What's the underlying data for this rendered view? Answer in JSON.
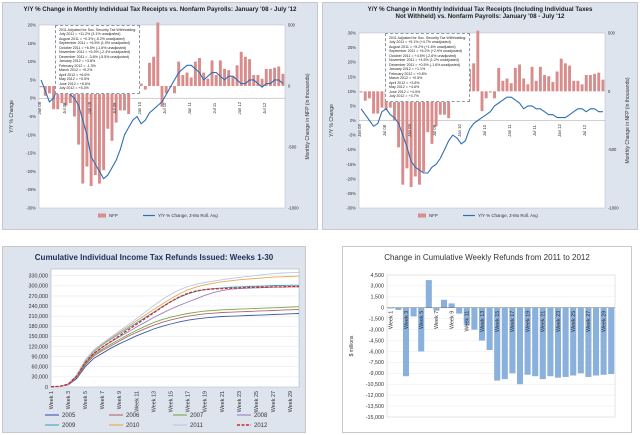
{
  "colors": {
    "bar_red": "#d98c8c",
    "line_blue": "#2f6fb3",
    "bar_blue": "#8ab0dc",
    "panel_bg": "#dde4ee"
  },
  "chart_data": [
    {
      "type": "bar",
      "title": "Y/Y % Change in Monthly Individual Tax Receipts  vs. Nonfarm Payrolls: January '08 - July '12",
      "ylabel_left": "Y/Y % Change",
      "ylabel_right": "Monthly Change in NFP (in thousands)",
      "ylim_left": [
        -30,
        20
      ],
      "yticks_left": [
        "20%",
        "15%",
        "10%",
        "5%",
        "0%",
        "-5%",
        "-10%",
        "-15%",
        "-20%",
        "-25%",
        "-30%"
      ],
      "ylim_right": [
        -1000,
        500
      ],
      "yticks_right": [
        "500",
        "",
        "0",
        "",
        "-500",
        "",
        "-1000"
      ],
      "xticks": [
        "Jan 08",
        "Jul 08",
        "Jan 09",
        "Jul 09",
        "Jan 10",
        "Jul 10",
        "Jan 11",
        "Jul 11",
        "Jan 12",
        "Jul 12"
      ],
      "legend": [
        "NFP",
        "Y/Y % Change, 3-Mo Roll. Avg"
      ],
      "annotation": [
        "2011 Adjusted for Soc. Security Tax Withholding:",
        "July 2011 = +11.2% (3.1% unadjusted)",
        "August 2011 = +0.3% (-5.2% unadjusted)",
        "September 2011 = +6.5% (1.9% unadjusted)",
        "October 2011 = +6.5% (-1.6% unadjusted)",
        "November 2011 = +5.3% (-2.4% unadjusted)",
        "December 2011 = -3.6% (-5.5% unadjusted)",
        "January 2012 = +3.8%",
        "February 2012 = -1.3%",
        "March 2012 = +5.2%",
        "April 2012 = +6.6%",
        "May 2012 = +5.5%",
        "June 2012 = +6.6%",
        "July 2012 = +5.3%"
      ],
      "series": [
        {
          "name": "NFP",
          "values": [
            -10,
            -80,
            -60,
            -190,
            -190,
            -140,
            -160,
            -140,
            -250,
            -480,
            -800,
            -660,
            -820,
            -730,
            -800,
            -690,
            -350,
            -450,
            -300,
            -200,
            -200,
            -230,
            -10,
            -60,
            20,
            -30,
            190,
            240,
            520,
            -170,
            -60,
            -10,
            -60,
            200,
            90,
            110,
            70,
            200,
            230,
            110,
            60,
            210,
            90,
            210,
            140,
            130,
            80,
            170,
            280,
            240,
            220,
            90,
            90,
            60,
            140,
            140,
            150,
            160,
            100
          ]
        },
        {
          "name": "Y/Y % Change, 3-Mo Roll. Avg",
          "values": [
            5,
            2,
            -1,
            0,
            3,
            5,
            4,
            1,
            0,
            -2,
            -6,
            -10,
            -16,
            -18,
            -20,
            -22,
            -21,
            -19,
            -17,
            -14,
            -10,
            -8,
            -6,
            -5,
            -7,
            -6,
            -4,
            -3,
            -2,
            -1,
            1,
            3,
            5,
            7,
            8,
            9,
            9,
            8,
            7,
            5,
            6,
            7,
            7,
            6,
            5,
            6,
            6,
            5,
            4,
            4,
            5,
            5,
            4,
            3,
            4,
            4,
            5,
            5,
            4
          ]
        }
      ]
    },
    {
      "type": "bar",
      "title": "Y/Y % Change in Monthly Individual Tax Receipts (Including Individual Taxes Not Withheld) vs. Nonfarm Payrolls: January '08 - July '12",
      "ylabel_left": "Y/Y % Change",
      "ylabel_right": "Monthly Change in NFP (in thousands)",
      "ylim_left": [
        -30,
        30
      ],
      "yticks_left": [
        "30%",
        "25%",
        "20%",
        "15%",
        "10%",
        "5%",
        "0%",
        "-5%",
        "-10%",
        "-15%",
        "-20%",
        "-25%",
        "-30%"
      ],
      "ylim_right": [
        -1000,
        500
      ],
      "yticks_right": [
        "500",
        "",
        "0",
        "",
        "-500",
        "",
        "-1000"
      ],
      "xticks": [
        "Jan 08",
        "Jul 08",
        "Jan 09",
        "Jul 09",
        "Jan 10",
        "Jul 10",
        "Jan 11",
        "Jul 11",
        "Jan 12",
        "Jul 12"
      ],
      "legend": [
        "NFP",
        "Y/Y % Change, 3-Mo Roll. Avg"
      ],
      "annotation": [
        "2011 Adjusted for Soc. Security Tax Withholding:",
        "July 2011 = +9.1% (+4.7% unadjusted)",
        "August 2011 = +5.2% (+1.6% unadjusted)",
        "September 2011 = +6.2% (+2.9% unadjusted)",
        "October 2011 = +4.5% (-2.6% unadjusted)",
        "November 2011 = +4.5% (1.2% unadjusted)",
        "December 2011 = +0.5% (-1.6% unadjusted)",
        "January 2012 = +1.1%",
        "February 2012 = +0.8%",
        "March 2012 = +0.5%",
        "April 2012 = +3.8%",
        "May 2012 = +4.6%",
        "June 2012 = +4.5%",
        "July 2012 = +3.7%"
      ],
      "series": [
        {
          "name": "NFP",
          "values": [
            -10,
            -80,
            -60,
            -190,
            -190,
            -140,
            -160,
            -140,
            -250,
            -480,
            -800,
            -660,
            -820,
            -730,
            -800,
            -690,
            -350,
            -450,
            -300,
            -200,
            -200,
            -230,
            -10,
            -60,
            20,
            -30,
            190,
            240,
            520,
            -170,
            -60,
            -10,
            -60,
            200,
            90,
            110,
            70,
            200,
            230,
            110,
            60,
            210,
            90,
            210,
            140,
            130,
            80,
            170,
            280,
            240,
            220,
            90,
            90,
            60,
            140,
            140,
            150,
            160,
            100
          ]
        },
        {
          "name": "Y/Y % Change, 3-Mo Roll. Avg",
          "values": [
            4,
            2,
            0,
            -2,
            -1,
            3,
            4,
            2,
            1,
            -1,
            -5,
            -9,
            -14,
            -16,
            -17,
            -18,
            -18,
            -16,
            -15,
            -13,
            -10,
            -7,
            -5,
            -6,
            -8,
            -7,
            -3,
            -1,
            0,
            1,
            2,
            3,
            5,
            6,
            7,
            8,
            8,
            7,
            6,
            4,
            5,
            5,
            4,
            4,
            3,
            2,
            2,
            1,
            1,
            1,
            2,
            3,
            4,
            4,
            3,
            4,
            4,
            3,
            3
          ]
        }
      ]
    },
    {
      "type": "line",
      "title": "Cumulative Individual Income Tax Refunds Issued: Weeks 1-30",
      "ylim": [
        0,
        350000
      ],
      "yticks": [
        "0",
        "30,000",
        "60,000",
        "90,000",
        "120,000",
        "150,000",
        "180,000",
        "210,000",
        "240,000",
        "270,000",
        "300,000",
        "330,000"
      ],
      "xticks": [
        "Week 1",
        "Week 3",
        "Week 5",
        "Week 7",
        "Week 9",
        "Week 11",
        "Week 13",
        "Week 15",
        "Week 17",
        "Week 19",
        "Week 21",
        "Week 23",
        "Week 25",
        "Week 27",
        "Week 29"
      ],
      "series": [
        {
          "name": "2005",
          "color": "#3a5aa8",
          "dash": false,
          "values": [
            1000,
            2000,
            6000,
            25000,
            60000,
            85000,
            100000,
            115000,
            128000,
            140000,
            152000,
            162000,
            172000,
            180000,
            187000,
            193000,
            198000,
            202000,
            205000,
            207000,
            209000,
            210000,
            211000,
            212000,
            213000,
            214000,
            215000,
            216000,
            217000,
            218000
          ]
        },
        {
          "name": "2006",
          "color": "#b06a6a",
          "dash": false,
          "values": [
            1000,
            2000,
            7000,
            28000,
            65000,
            92000,
            108000,
            122000,
            136000,
            150000,
            162000,
            173000,
            183000,
            192000,
            199000,
            205000,
            210000,
            214000,
            217000,
            219000,
            221000,
            222000,
            223000,
            224000,
            225000,
            226000,
            227000,
            228000,
            229000,
            230000
          ]
        },
        {
          "name": "2007",
          "color": "#7aa84a",
          "dash": false,
          "values": [
            1000,
            2000,
            8000,
            30000,
            68000,
            96000,
            112000,
            127000,
            141000,
            155000,
            168000,
            180000,
            191000,
            200000,
            207000,
            213000,
            218000,
            222000,
            225000,
            227000,
            229000,
            230000,
            231000,
            232000,
            233000,
            234000,
            235000,
            236000,
            237000,
            238000
          ]
        },
        {
          "name": "2008",
          "color": "#9b7fc0",
          "dash": false,
          "values": [
            1000,
            2000,
            8000,
            32000,
            72000,
            100000,
            118000,
            134000,
            149000,
            163000,
            178000,
            192000,
            206000,
            219000,
            231000,
            242000,
            252000,
            262000,
            272000,
            280000,
            286000,
            290000,
            292000,
            293000,
            294000,
            295000,
            296000,
            296000,
            297000,
            297000
          ]
        },
        {
          "name": "2009",
          "color": "#3fa8c0",
          "dash": false,
          "values": [
            1000,
            2000,
            9000,
            35000,
            78000,
            106000,
            125000,
            142000,
            158000,
            174000,
            190000,
            206000,
            222000,
            238000,
            253000,
            266000,
            276000,
            284000,
            289000,
            292000,
            294000,
            296000,
            297000,
            298000,
            299000,
            300000,
            301000,
            301000,
            302000,
            302000
          ]
        },
        {
          "name": "2010",
          "color": "#e8a84a",
          "dash": false,
          "values": [
            1000,
            2000,
            9000,
            36000,
            80000,
            108000,
            127000,
            145000,
            162000,
            179000,
            196000,
            213000,
            230000,
            246000,
            262000,
            276000,
            288000,
            297000,
            303000,
            308000,
            312000,
            315000,
            318000,
            320000,
            322000,
            324000,
            326000,
            327000,
            328000,
            329000
          ]
        },
        {
          "name": "2011",
          "color": "#b8c8e8",
          "dash": false,
          "values": [
            1000,
            2000,
            9000,
            36000,
            80000,
            110000,
            130000,
            148000,
            166000,
            184000,
            203000,
            222000,
            241000,
            259000,
            275000,
            288000,
            298000,
            305000,
            310000,
            314000,
            318000,
            322000,
            325000,
            328000,
            331000,
            334000,
            336000,
            338000,
            339000,
            340000
          ]
        },
        {
          "name": "2012",
          "color": "#d02a2a",
          "dash": true,
          "values": [
            1000,
            2000,
            8000,
            32000,
            72000,
            100000,
            118000,
            135000,
            152000,
            169000,
            186000,
            203000,
            220000,
            237000,
            253000,
            267000,
            278000,
            285000,
            289000,
            291000,
            292000,
            293000,
            294000,
            295000,
            296000,
            296000,
            297000,
            297000,
            298000,
            298000
          ]
        }
      ],
      "legend": [
        "2005",
        "2006",
        "2007",
        "2008",
        "2009",
        "2010",
        "2011",
        "2012"
      ]
    },
    {
      "type": "bar",
      "title": "Change in Cumulative Weekly Refunds from 2011 to 2012",
      "ylabel": "$ millions",
      "ylim": [
        -15000,
        4500
      ],
      "yticks": [
        "4,500",
        "3,000",
        "1,500",
        "0",
        "-1,500",
        "-3,000",
        "-4,500",
        "-6,000",
        "-7,500",
        "-9,000",
        "-10,500",
        "-12,000",
        "-13,500",
        "-15,000"
      ],
      "categories": [
        "Week 1",
        "Week 2",
        "Week 3",
        "Week 4",
        "Week 5",
        "Week 6",
        "Week 7",
        "Week 8",
        "Week 9",
        "Week 10",
        "Week 11",
        "Week 12",
        "Week 13",
        "Week 14",
        "Week 15",
        "Week 16",
        "Week 17",
        "Week 18",
        "Week 19",
        "Week 20",
        "Week 21",
        "Week 22",
        "Week 23",
        "Week 24",
        "Week 25",
        "Week 26",
        "Week 27",
        "Week 28",
        "Week 29",
        "Week 30"
      ],
      "xticks": [
        "Week 1",
        "Week 3",
        "Week 5",
        "Week 7",
        "Week 9",
        "Week 11",
        "Week 13",
        "Week 15",
        "Week 17",
        "Week 19",
        "Week 21",
        "Week 23",
        "Week 25",
        "Week 27",
        "Week 29"
      ],
      "values": [
        -100,
        -300,
        -9400,
        -1200,
        -6000,
        3800,
        -400,
        1100,
        600,
        -800,
        -2400,
        -3000,
        -4500,
        -5800,
        -10000,
        -9800,
        -9000,
        -10500,
        -9200,
        -9400,
        -9800,
        -9400,
        -9600,
        -9500,
        -9300,
        -9000,
        -9500,
        -9300,
        -9200,
        -9100
      ]
    }
  ]
}
